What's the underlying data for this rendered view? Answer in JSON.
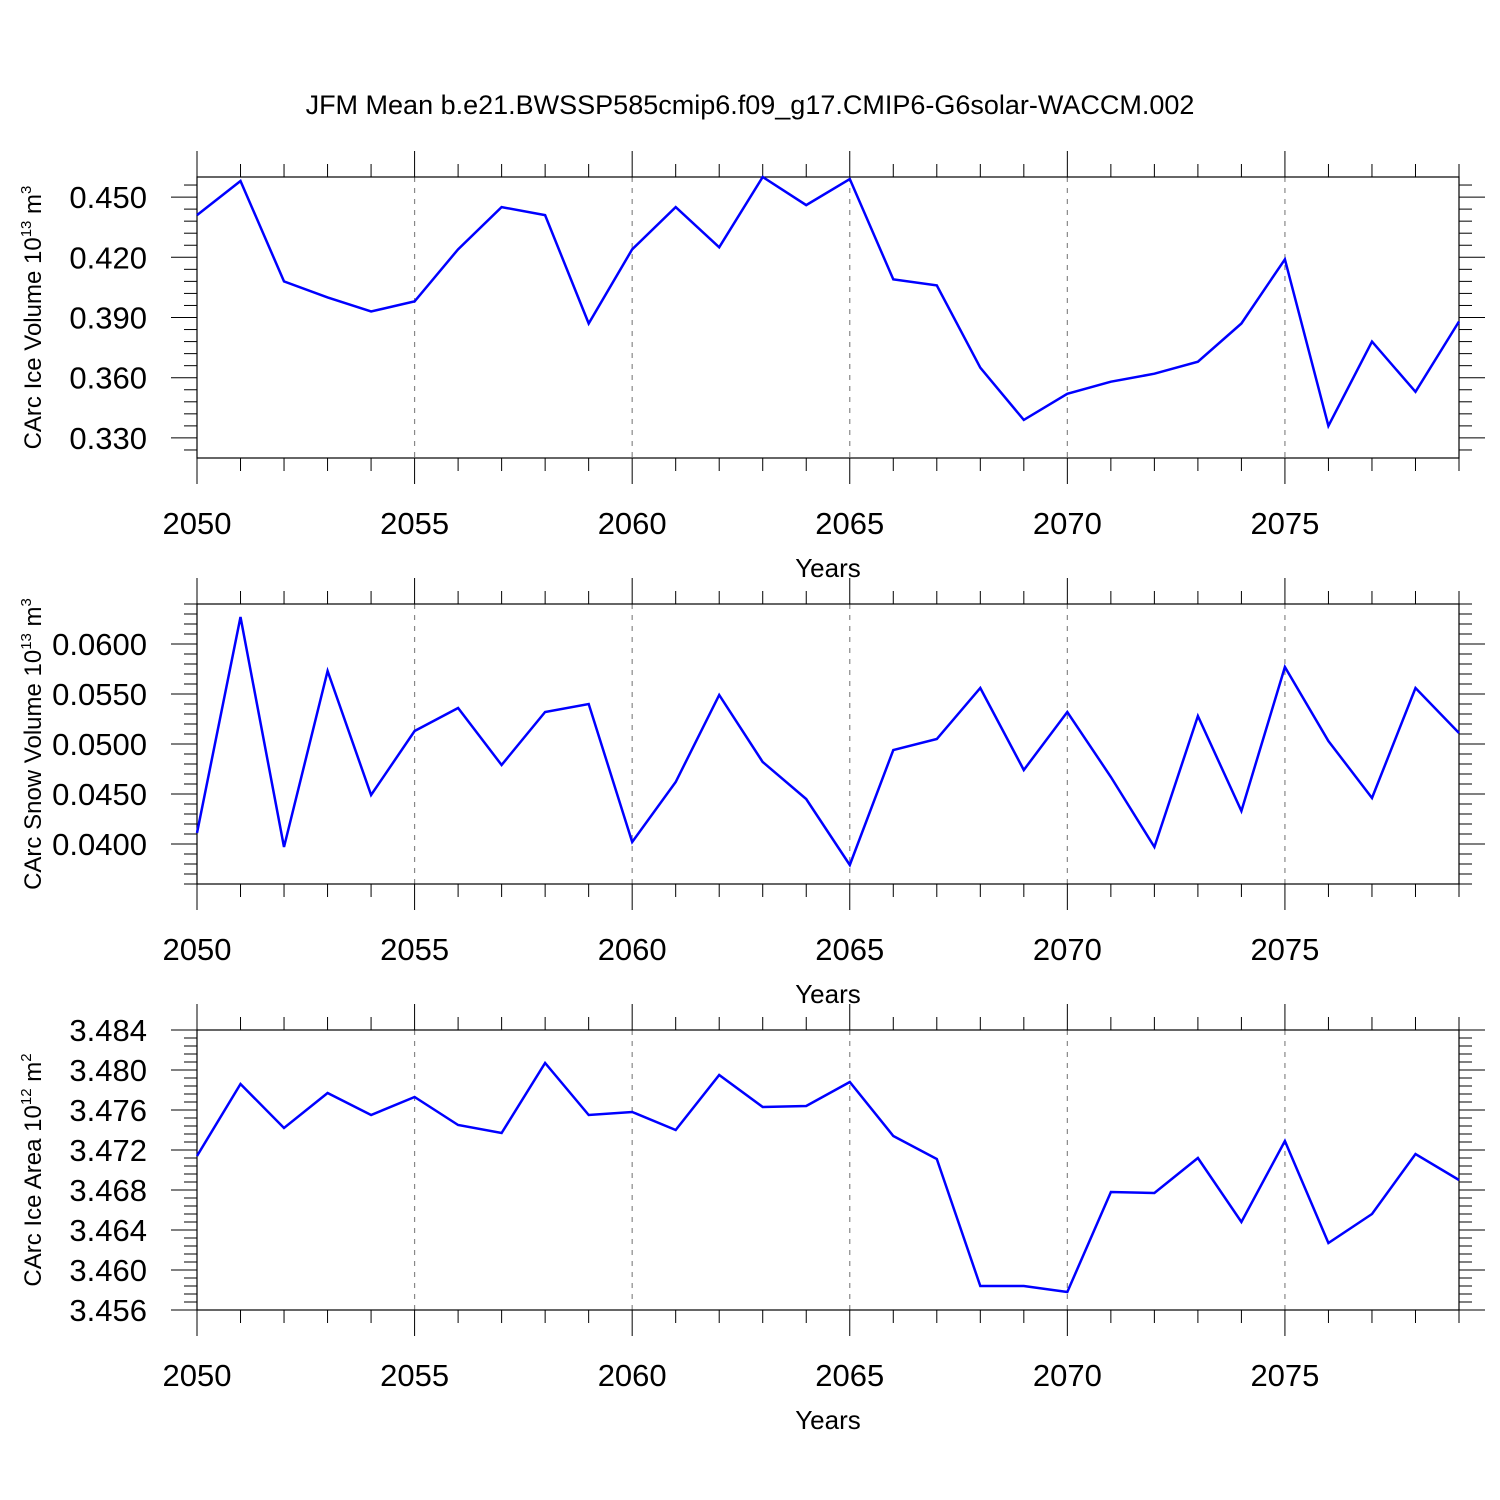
{
  "title": "JFM Mean b.e21.BWSSP585cmip6.f09_g17.CMIP6-G6solar-WACCM.002",
  "colors": {
    "series": "#0000ff",
    "grid": "#888888",
    "axis": "#000000"
  },
  "chart_data": [
    {
      "type": "line",
      "ylabel_main": "CArc Ice Volume 10",
      "ylabel_exp": "13",
      "ylabel_unit": " m",
      "ylabel_unit_exp": "3",
      "xlabel": "Years",
      "xlim": [
        2050,
        2079
      ],
      "ylim": [
        0.32,
        0.46
      ],
      "xticks": [
        2050,
        2055,
        2060,
        2065,
        2070,
        2075
      ],
      "yticks": [
        0.33,
        0.36,
        0.39,
        0.42,
        0.45
      ],
      "ytick_labels": [
        "0.330",
        "0.360",
        "0.390",
        "0.420",
        "0.450"
      ],
      "y_minor_step": 0.006,
      "grid_x": true,
      "x": [
        2050,
        2051,
        2052,
        2053,
        2054,
        2055,
        2056,
        2057,
        2058,
        2059,
        2060,
        2061,
        2062,
        2063,
        2064,
        2065,
        2066,
        2067,
        2068,
        2069,
        2070,
        2071,
        2072,
        2073,
        2074,
        2075,
        2076,
        2077,
        2078,
        2079
      ],
      "series": [
        {
          "values": [
            0.441,
            0.458,
            0.408,
            0.4,
            0.393,
            0.398,
            0.424,
            0.445,
            0.441,
            0.387,
            0.424,
            0.445,
            0.425,
            0.46,
            0.446,
            0.459,
            0.409,
            0.406,
            0.365,
            0.339,
            0.352,
            0.358,
            0.362,
            0.368,
            0.387,
            0.419,
            0.336,
            0.378,
            0.353,
            0.388
          ]
        }
      ]
    },
    {
      "type": "line",
      "ylabel_main": "CArc Snow Volume 10",
      "ylabel_exp": "13",
      "ylabel_unit": " m",
      "ylabel_unit_exp": "3",
      "xlabel": "Years",
      "xlim": [
        2050,
        2079
      ],
      "ylim": [
        0.036,
        0.064
      ],
      "xticks": [
        2050,
        2055,
        2060,
        2065,
        2070,
        2075
      ],
      "yticks": [
        0.04,
        0.045,
        0.05,
        0.055,
        0.06
      ],
      "ytick_labels": [
        "0.0400",
        "0.0450",
        "0.0500",
        "0.0550",
        "0.0600"
      ],
      "y_minor_step": 0.001,
      "grid_x": true,
      "x": [
        2050,
        2051,
        2052,
        2053,
        2054,
        2055,
        2056,
        2057,
        2058,
        2059,
        2060,
        2061,
        2062,
        2063,
        2064,
        2065,
        2066,
        2067,
        2068,
        2069,
        2070,
        2071,
        2072,
        2073,
        2074,
        2075,
        2076,
        2077,
        2078,
        2079
      ],
      "series": [
        {
          "values": [
            0.0411,
            0.0627,
            0.0397,
            0.0573,
            0.0449,
            0.0513,
            0.0536,
            0.0479,
            0.0532,
            0.054,
            0.0402,
            0.0462,
            0.0549,
            0.0482,
            0.0445,
            0.0379,
            0.0494,
            0.0505,
            0.0556,
            0.0474,
            0.0532,
            0.0467,
            0.0397,
            0.0528,
            0.0433,
            0.0577,
            0.0503,
            0.0446,
            0.0556,
            0.0511
          ]
        }
      ]
    },
    {
      "type": "line",
      "ylabel_main": "CArc Ice Area 10",
      "ylabel_exp": "12",
      "ylabel_unit": " m",
      "ylabel_unit_exp": "2",
      "xlabel": "Years",
      "xlim": [
        2050,
        2079
      ],
      "ylim": [
        3.456,
        3.484
      ],
      "xticks": [
        2050,
        2055,
        2060,
        2065,
        2070,
        2075
      ],
      "yticks": [
        3.456,
        3.46,
        3.464,
        3.468,
        3.472,
        3.476,
        3.48,
        3.484
      ],
      "ytick_labels": [
        "3.456",
        "3.460",
        "3.464",
        "3.468",
        "3.472",
        "3.476",
        "3.480",
        "3.484"
      ],
      "y_minor_step": 0.0008,
      "grid_x": true,
      "x": [
        2050,
        2051,
        2052,
        2053,
        2054,
        2055,
        2056,
        2057,
        2058,
        2059,
        2060,
        2061,
        2062,
        2063,
        2064,
        2065,
        2066,
        2067,
        2068,
        2069,
        2070,
        2071,
        2072,
        2073,
        2074,
        2075,
        2076,
        2077,
        2078,
        2079
      ],
      "series": [
        {
          "values": [
            3.4714,
            3.4786,
            3.4742,
            3.4777,
            3.4755,
            3.4773,
            3.4745,
            3.4737,
            3.4807,
            3.4755,
            3.4758,
            3.474,
            3.4795,
            3.4763,
            3.4764,
            3.4788,
            3.4734,
            3.4711,
            3.4584,
            3.4584,
            3.4578,
            3.4678,
            3.4677,
            3.4712,
            3.4648,
            3.4729,
            3.4627,
            3.4656,
            3.4716,
            3.469
          ]
        }
      ]
    }
  ]
}
